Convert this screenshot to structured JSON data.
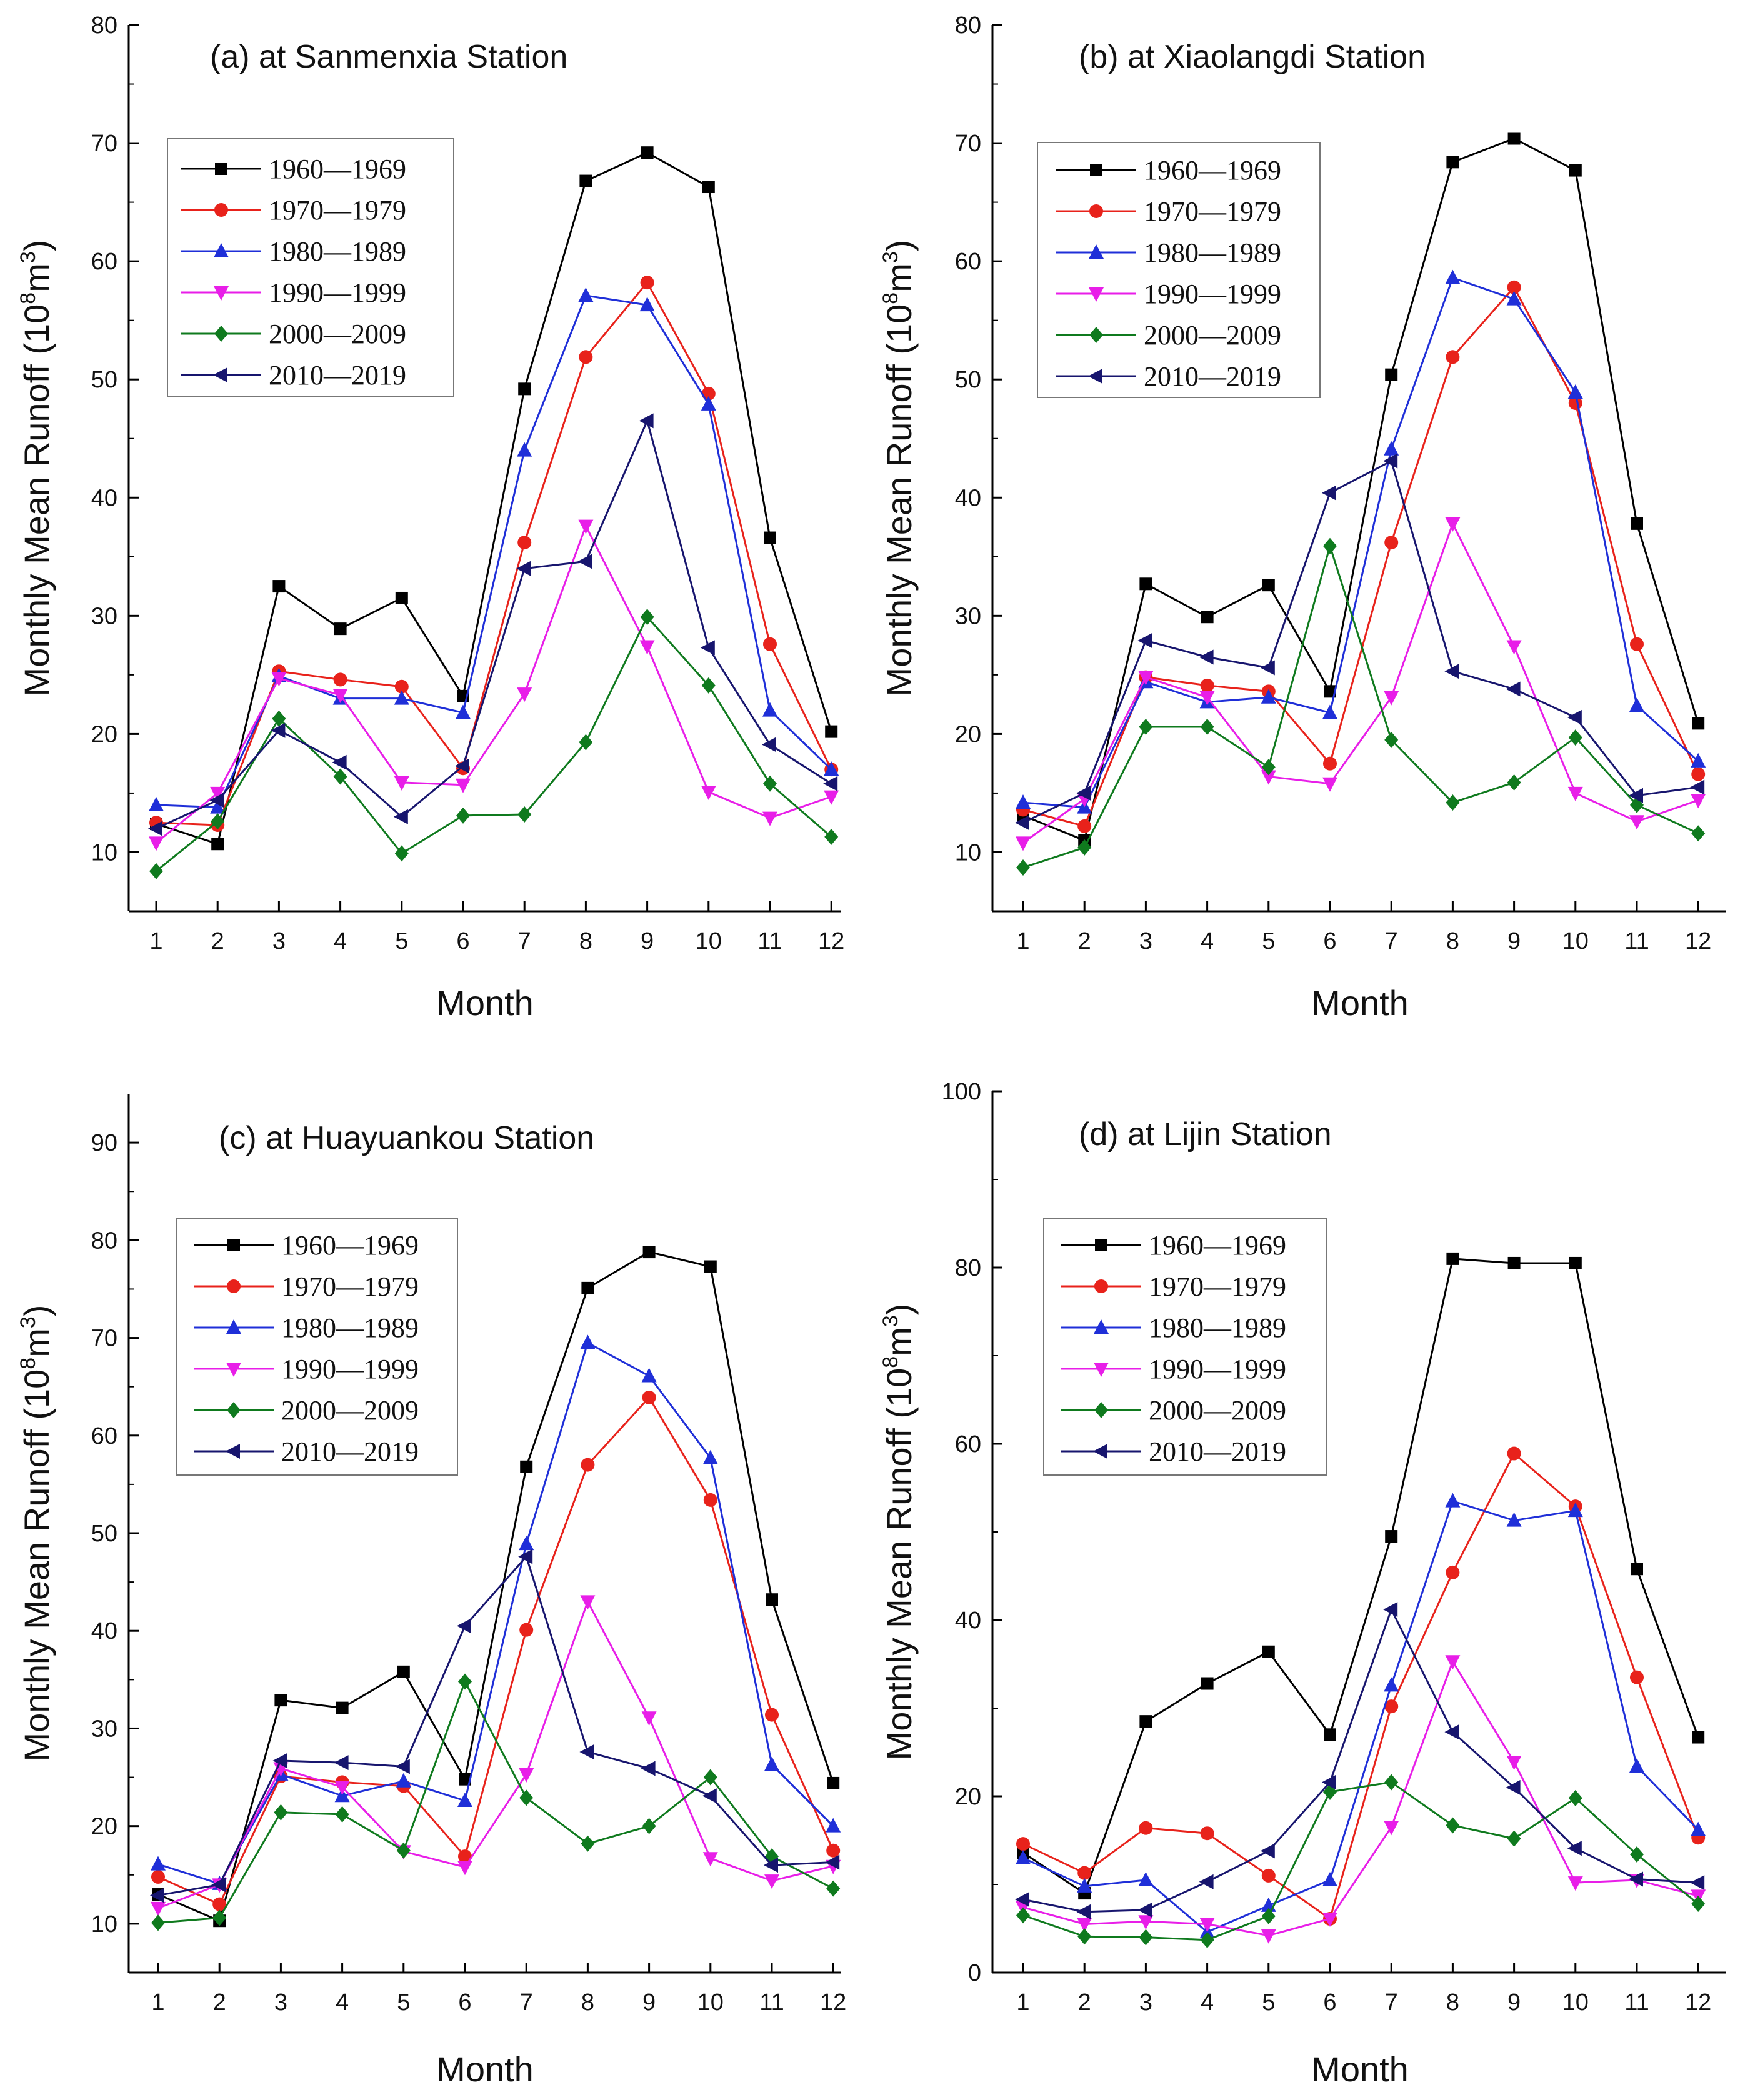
{
  "chart_data": [
    {
      "type": "line",
      "title": "(a) at Sanmenxia Station",
      "xlabel": "Month",
      "ylabel": "Monthly Mean Runoff (10^8m^3)",
      "ylim": [
        5,
        80
      ],
      "yticks": [
        10,
        20,
        30,
        40,
        50,
        60,
        70,
        80
      ],
      "legend_position": "upper-left",
      "categories": [
        "1",
        "2",
        "3",
        "4",
        "5",
        "6",
        "7",
        "8",
        "9",
        "10",
        "11",
        "12"
      ],
      "series": [
        {
          "name": "1960—1969",
          "color": "#000000",
          "marker": "square",
          "values": [
            12.4,
            10.7,
            32.5,
            28.9,
            31.5,
            23.2,
            49.2,
            66.8,
            69.2,
            66.3,
            36.6,
            20.2
          ]
        },
        {
          "name": "1970—1979",
          "color": "#e8221b",
          "marker": "circle",
          "values": [
            12.5,
            12.3,
            25.3,
            24.6,
            24.0,
            17.1,
            36.2,
            51.9,
            58.2,
            48.8,
            27.6,
            17.0
          ]
        },
        {
          "name": "1980—1989",
          "color": "#1f2fd8",
          "marker": "triangle-up",
          "values": [
            14.0,
            13.8,
            24.9,
            23.0,
            23.0,
            21.8,
            44.0,
            57.1,
            56.3,
            47.9,
            22.0,
            17.0
          ]
        },
        {
          "name": "1990—1999",
          "color": "#e81ee8",
          "marker": "triangle-down",
          "values": [
            10.8,
            15.0,
            24.7,
            23.3,
            15.9,
            15.7,
            23.4,
            37.6,
            27.4,
            15.1,
            12.9,
            14.7
          ]
        },
        {
          "name": "2000—2009",
          "color": "#0f7a1e",
          "marker": "diamond",
          "values": [
            8.4,
            12.6,
            21.3,
            16.4,
            9.9,
            13.1,
            13.2,
            19.3,
            29.9,
            24.1,
            15.8,
            11.3
          ]
        },
        {
          "name": "2010—2019",
          "color": "#17156e",
          "marker": "triangle-left",
          "values": [
            12.0,
            14.4,
            20.3,
            17.6,
            13.0,
            17.3,
            34.0,
            34.6,
            46.5,
            27.3,
            19.1,
            15.8
          ]
        }
      ]
    },
    {
      "type": "line",
      "title": "(b) at Xiaolangdi Station",
      "xlabel": "Month",
      "ylabel": "Monthly Mean Runoff (10^8m^3)",
      "ylim": [
        5,
        80
      ],
      "yticks": [
        10,
        20,
        30,
        40,
        50,
        60,
        70,
        80
      ],
      "legend_position": "upper-left",
      "categories": [
        "1",
        "2",
        "3",
        "4",
        "5",
        "6",
        "7",
        "8",
        "9",
        "10",
        "11",
        "12"
      ],
      "series": [
        {
          "name": "1960—1969",
          "color": "#000000",
          "marker": "square",
          "values": [
            13.1,
            11.0,
            32.7,
            29.9,
            32.6,
            23.6,
            50.4,
            68.4,
            70.4,
            67.7,
            37.8,
            20.9
          ]
        },
        {
          "name": "1970—1979",
          "color": "#e8221b",
          "marker": "circle",
          "values": [
            13.6,
            12.2,
            24.8,
            24.1,
            23.6,
            17.5,
            36.2,
            51.9,
            57.8,
            48.0,
            27.6,
            16.6
          ]
        },
        {
          "name": "1980—1989",
          "color": "#1f2fd8",
          "marker": "triangle-up",
          "values": [
            14.2,
            13.8,
            24.4,
            22.7,
            23.1,
            21.8,
            44.1,
            58.6,
            56.8,
            48.9,
            22.4,
            17.7
          ]
        },
        {
          "name": "1990—1999",
          "color": "#e81ee8",
          "marker": "triangle-down",
          "values": [
            10.8,
            14.5,
            24.8,
            23.1,
            16.4,
            15.8,
            23.1,
            37.8,
            27.4,
            15.0,
            12.6,
            14.4
          ]
        },
        {
          "name": "2000—2009",
          "color": "#0f7a1e",
          "marker": "diamond",
          "values": [
            8.7,
            10.4,
            20.6,
            20.6,
            17.2,
            35.9,
            19.5,
            14.2,
            15.9,
            19.7,
            14.0,
            11.6
          ]
        },
        {
          "name": "2010—2019",
          "color": "#17156e",
          "marker": "triangle-left",
          "values": [
            12.5,
            15.0,
            27.9,
            26.5,
            25.6,
            40.4,
            43.1,
            25.3,
            23.8,
            21.4,
            14.8,
            15.5
          ]
        }
      ]
    },
    {
      "type": "line",
      "title": "(c) at Huayuankou Station",
      "xlabel": "Month",
      "ylabel": "Monthly Mean Runoff (10^8m^3)",
      "ylim": [
        5,
        95
      ],
      "yticks": [
        10,
        20,
        30,
        40,
        50,
        60,
        70,
        80,
        90
      ],
      "legend_position": "upper-left",
      "categories": [
        "1",
        "2",
        "3",
        "4",
        "5",
        "6",
        "7",
        "8",
        "9",
        "10",
        "11",
        "12"
      ],
      "series": [
        {
          "name": "1960—1969",
          "color": "#000000",
          "marker": "square",
          "values": [
            13.0,
            10.3,
            32.9,
            32.1,
            35.8,
            24.8,
            56.8,
            75.1,
            78.8,
            77.3,
            43.2,
            24.4
          ]
        },
        {
          "name": "1970—1979",
          "color": "#e8221b",
          "marker": "circle",
          "values": [
            14.8,
            12.0,
            25.1,
            24.5,
            24.1,
            16.9,
            40.1,
            57.0,
            63.9,
            53.4,
            31.4,
            17.5
          ]
        },
        {
          "name": "1980—1989",
          "color": "#1f2fd8",
          "marker": "triangle-up",
          "values": [
            16.1,
            14.1,
            25.3,
            23.1,
            24.6,
            22.6,
            48.9,
            69.5,
            66.1,
            57.7,
            26.3,
            20.0
          ]
        },
        {
          "name": "1990—1999",
          "color": "#e81ee8",
          "marker": "triangle-down",
          "values": [
            11.6,
            14.0,
            25.9,
            24.0,
            17.4,
            15.8,
            25.3,
            43.0,
            31.1,
            16.7,
            14.4,
            15.9
          ]
        },
        {
          "name": "2000—2009",
          "color": "#0f7a1e",
          "marker": "diamond",
          "values": [
            10.1,
            10.6,
            21.4,
            21.2,
            17.5,
            34.8,
            22.9,
            18.2,
            20.0,
            25.0,
            16.9,
            13.6
          ]
        },
        {
          "name": "2010—2019",
          "color": "#17156e",
          "marker": "triangle-left",
          "values": [
            12.9,
            14.0,
            26.7,
            26.5,
            26.1,
            40.5,
            47.6,
            27.6,
            25.9,
            23.1,
            16.0,
            16.3
          ]
        }
      ]
    },
    {
      "type": "line",
      "title": "(d) at Lijin Station",
      "xlabel": "Month",
      "ylabel": "Monthly Mean Runoff (10^8m^3)",
      "ylim": [
        0,
        100
      ],
      "yticks": [
        0,
        20,
        40,
        60,
        80,
        100
      ],
      "legend_position": "upper-left",
      "categories": [
        "1",
        "2",
        "3",
        "4",
        "5",
        "6",
        "7",
        "8",
        "9",
        "10",
        "11",
        "12"
      ],
      "series": [
        {
          "name": "1960—1969",
          "color": "#000000",
          "marker": "square",
          "values": [
            13.6,
            9.0,
            28.5,
            32.8,
            36.4,
            27.0,
            49.5,
            81.0,
            80.5,
            80.5,
            45.8,
            26.7
          ]
        },
        {
          "name": "1970—1979",
          "color": "#e8221b",
          "marker": "circle",
          "values": [
            14.6,
            11.3,
            16.4,
            15.8,
            11.0,
            6.1,
            30.2,
            45.4,
            58.9,
            52.9,
            33.5,
            15.3
          ]
        },
        {
          "name": "1980—1989",
          "color": "#1f2fd8",
          "marker": "triangle-up",
          "values": [
            13.0,
            9.8,
            10.5,
            4.6,
            7.6,
            10.5,
            32.6,
            53.5,
            51.3,
            52.4,
            23.4,
            16.2
          ]
        },
        {
          "name": "1990—1999",
          "color": "#e81ee8",
          "marker": "triangle-down",
          "values": [
            7.4,
            5.5,
            5.8,
            5.5,
            4.2,
            6.1,
            16.5,
            35.3,
            23.9,
            10.2,
            10.5,
            8.7
          ]
        },
        {
          "name": "2000—2009",
          "color": "#0f7a1e",
          "marker": "diamond",
          "values": [
            6.5,
            4.1,
            4.0,
            3.7,
            6.4,
            20.5,
            21.6,
            16.7,
            15.2,
            19.8,
            13.4,
            7.8
          ]
        },
        {
          "name": "2010—2019",
          "color": "#17156e",
          "marker": "triangle-left",
          "values": [
            8.3,
            6.9,
            7.1,
            10.3,
            13.8,
            21.6,
            41.2,
            27.3,
            21.0,
            14.1,
            10.6,
            10.2
          ]
        }
      ]
    }
  ]
}
